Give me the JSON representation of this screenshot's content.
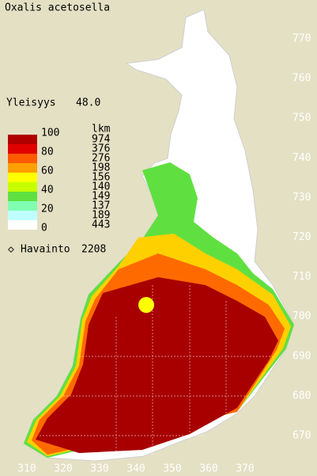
{
  "title": "Oxalis acetosella",
  "frequency": {
    "label": "Yleisyys",
    "value": "48.0"
  },
  "legend": {
    "scale_labels": [
      "100",
      "80",
      "60",
      "40",
      "20",
      "0"
    ],
    "count_header": "lkm",
    "counts": [
      "974",
      "376",
      "276",
      "198",
      "156",
      "140",
      "149",
      "137",
      "189",
      "443"
    ],
    "colors": [
      "#b00000",
      "#e00000",
      "#ff5a00",
      "#ffa000",
      "#ffff00",
      "#c8ff00",
      "#60e040",
      "#80ffb0",
      "#c0ffff",
      "#ffffff"
    ]
  },
  "observations": {
    "label": "Havainto",
    "value": "2208"
  },
  "y_labels": [
    "770",
    "760",
    "750",
    "740",
    "730",
    "720",
    "710",
    "700",
    "690",
    "680",
    "670"
  ],
  "x_labels": [
    "310",
    "320",
    "330",
    "340",
    "350",
    "360",
    "370"
  ]
}
